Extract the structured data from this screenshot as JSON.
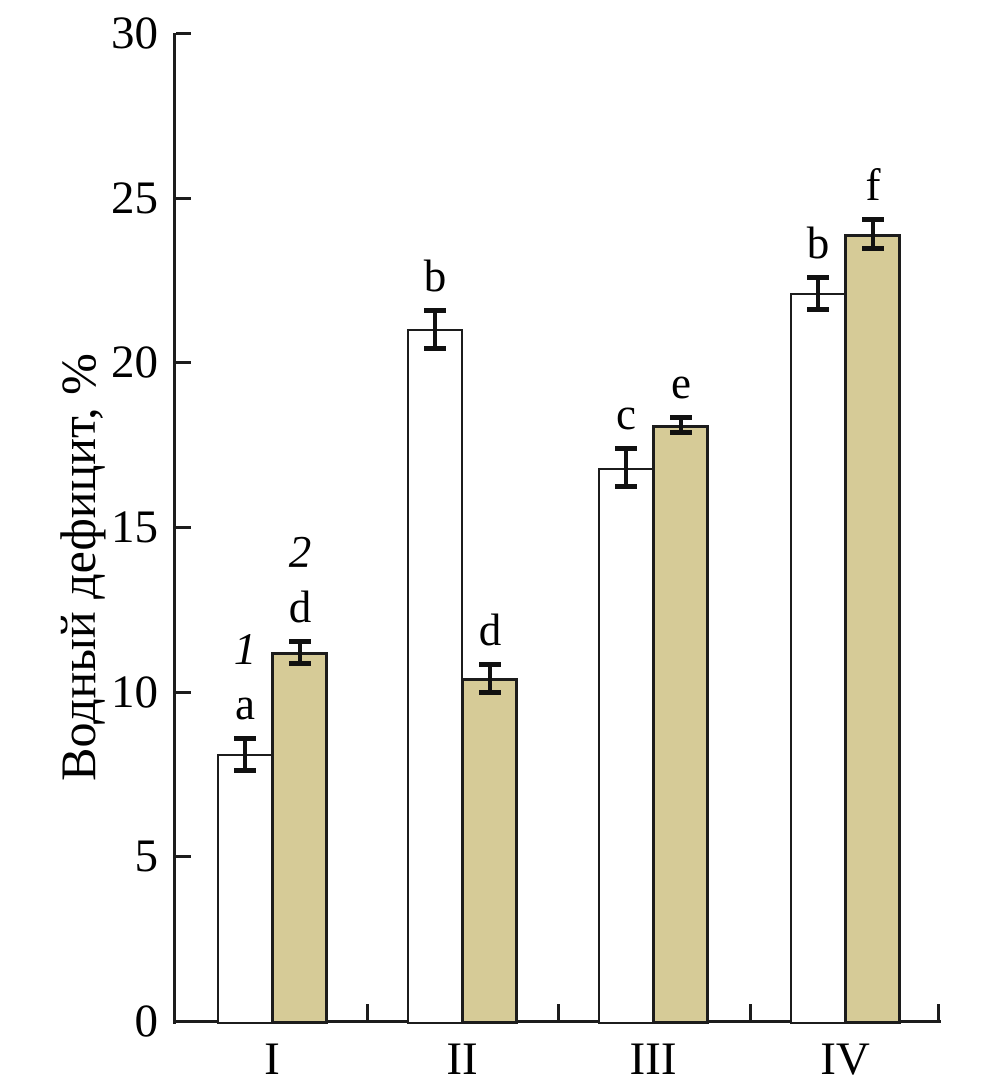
{
  "chart_data": {
    "type": "bar",
    "title": "",
    "xlabel": "",
    "ylabel": "Водный дефицит, %",
    "categories": [
      "I",
      "II",
      "III",
      "IV"
    ],
    "ylim": [
      0,
      30
    ],
    "yticks": [
      0,
      5,
      10,
      15,
      20,
      25,
      30
    ],
    "grid": false,
    "legend_position": "series labels drawn above first group bars",
    "axis_color": "#1c1c1c",
    "error_bar_color": "#111111",
    "bar_outline_color": "#1c1c1c",
    "series": [
      {
        "name": "1",
        "fill": "#ffffff",
        "values": [
          8.1,
          21.0,
          16.8,
          22.1
        ],
        "errors": [
          0.5,
          0.6,
          0.6,
          0.5
        ],
        "letters": [
          "a",
          "b",
          "c",
          "b"
        ]
      },
      {
        "name": "2",
        "fill": "#d6cb97",
        "values": [
          11.2,
          10.4,
          18.1,
          23.9
        ],
        "errors": [
          0.35,
          0.45,
          0.25,
          0.45
        ],
        "letters": [
          "d",
          "d",
          "e",
          "f"
        ]
      }
    ]
  }
}
